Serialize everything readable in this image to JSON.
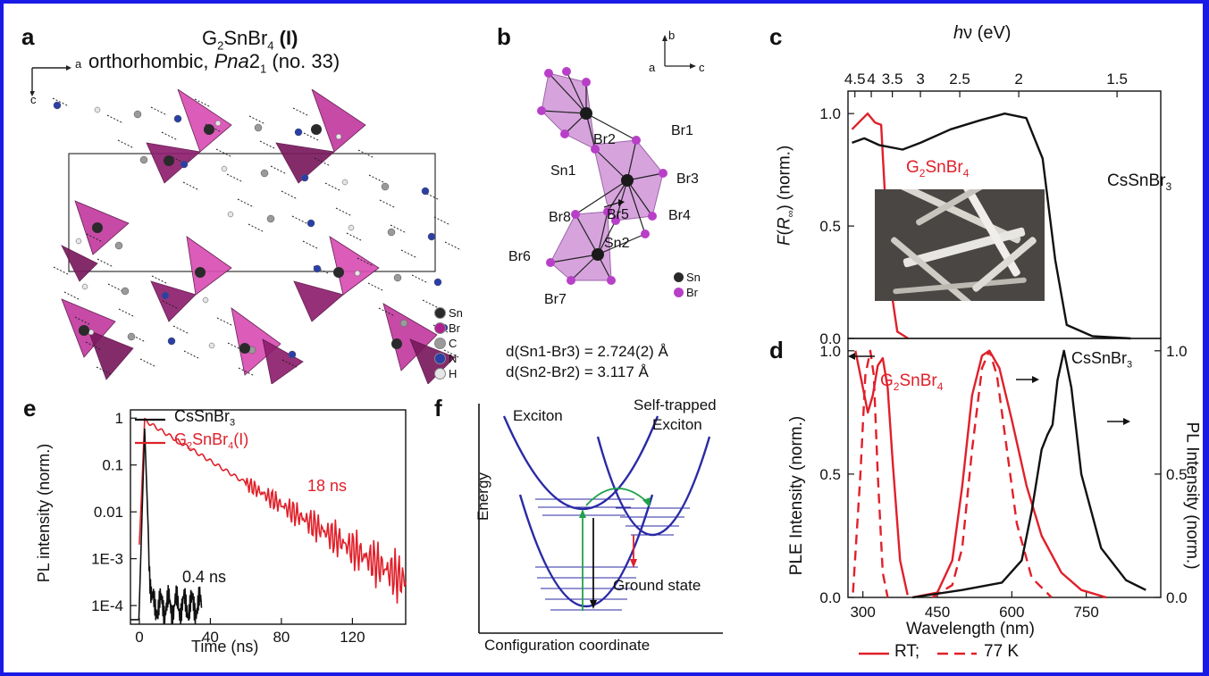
{
  "panels": {
    "a": {
      "label": "a",
      "title_compound": "G",
      "title_sub1": "2",
      "title_mid": "SnBr",
      "title_sub2": "4",
      "title_suffix": " (I)",
      "subtitle_pre": "orthorhombic, ",
      "subtitle_group": "Pna",
      "subtitle_sub": "2",
      "subtitle_sub2": "1",
      "subtitle_post": " (no. 33)",
      "axis_a": "a",
      "axis_c": "c",
      "legend": [
        {
          "label": "Sn",
          "color": "#2a2a2a"
        },
        {
          "label": "Br",
          "color": "#b0208f"
        },
        {
          "label": "C",
          "color": "#9a9a9a"
        },
        {
          "label": "N",
          "color": "#2b3fa8"
        },
        {
          "label": "H",
          "color": "#e6e6e6"
        }
      ]
    },
    "b": {
      "label": "b",
      "axis_b": "b",
      "axis_a": "a",
      "axis_c": "c",
      "atoms": [
        "Br2",
        "Br1",
        "Sn1",
        "Br3",
        "Br8",
        "Br5",
        "Br4",
        "Br6",
        "Sn2",
        "Br7"
      ],
      "legend": [
        {
          "label": "Sn",
          "color": "#2a2a2a"
        },
        {
          "label": "Br",
          "color": "#b83fc8"
        }
      ],
      "distance1": "d(Sn1-Br3) = 2.724(2) Å",
      "distance2": "d(Sn2-Br2) = 3.117 Å"
    },
    "c": {
      "label": "c",
      "top_axis_label_italic": "h",
      "top_axis_label_rest": "ν (eV)",
      "top_ticks": [
        "4.5",
        "4",
        "3.5",
        "3",
        "2.5",
        "2",
        "1.5"
      ],
      "y_ticks": [
        "0.0",
        "0.5",
        "1.0"
      ],
      "ylabel_italic_F": "F",
      "ylabel_R": "(R",
      "ylabel_sub": "∞",
      "ylabel_rest": ") (norm.)",
      "label_g_pre": "G",
      "label_g_sub": "2",
      "label_g_mid": "SnBr",
      "label_g_sub2": "4",
      "label_cs_pre": "CsSnBr",
      "label_cs_sub": "3"
    },
    "d": {
      "label": "d",
      "x_ticks": [
        "300",
        "450",
        "600",
        "750"
      ],
      "y_ticks_left": [
        "0.0",
        "0.5",
        "1.0"
      ],
      "y_ticks_right": [
        "0.0",
        "0.5",
        "1.0"
      ],
      "xlabel": "Wavelength (nm)",
      "ylabel_left": "PLE Intensity (norm.)",
      "ylabel_right": "PL Intensity (norm.)",
      "label_g_pre": "G",
      "label_g_sub": "2",
      "label_g_mid": "SnBr",
      "label_g_sub2": "4",
      "label_cs_pre": "CsSnBr",
      "label_cs_sub": "3",
      "legend_rt": "RT;",
      "legend_77k": "77 K"
    },
    "e": {
      "label": "e",
      "y_ticks": [
        "1",
        "0.1",
        "0.01",
        "1E-3",
        "1E-4"
      ],
      "x_ticks": [
        "0",
        "40",
        "80",
        "120"
      ],
      "xlabel": "Time (ns)",
      "ylabel": "PL intensity (norm.)",
      "legend_cs_pre": "CsSnBr",
      "legend_cs_sub": "3",
      "legend_g_pre": "G",
      "legend_g_sub": "2",
      "legend_g_mid": "SnBr",
      "legend_g_sub2": "4",
      "legend_g_suffix": "(I)",
      "ann_18": "18 ns",
      "ann_04": "0.4 ns"
    },
    "f": {
      "label": "f",
      "exciton": "Exciton",
      "ste1": "Self-trapped",
      "ste2": "Exciton",
      "ground": "Ground state",
      "ylabel": "Energy",
      "xlabel": "Configuration coordinate"
    }
  },
  "colors": {
    "red": "#e0202a",
    "black": "#111111",
    "blue": "#2a2aa6",
    "green": "#1fa24a",
    "frame": "#1a1ae6"
  },
  "chart_data": [
    {
      "type": "line",
      "panel": "c",
      "xlabel": "",
      "x2label": "hν (eV)",
      "ylabel": "F(R∞) (norm.)",
      "x2_ticks": [
        4.5,
        4,
        3.5,
        3,
        2.5,
        2,
        1.5
      ],
      "ylim": [
        0,
        1.1
      ],
      "series": [
        {
          "name": "G2SnBr4",
          "x_eV": [
            4.6,
            4.3,
            4.1,
            3.9,
            3.75,
            3.65,
            3.55,
            3.4,
            3.2
          ],
          "y": [
            0.93,
            0.97,
            1.0,
            0.96,
            0.95,
            0.6,
            0.25,
            0.03,
            0.0
          ]
        },
        {
          "name": "CsSnBr3",
          "x_eV": [
            4.6,
            4.2,
            3.8,
            3.3,
            3.0,
            2.6,
            2.3,
            2.1,
            1.95,
            1.85,
            1.78,
            1.72,
            1.6,
            1.45
          ],
          "y": [
            0.87,
            0.89,
            0.86,
            0.84,
            0.87,
            0.93,
            0.97,
            1.0,
            0.98,
            0.8,
            0.35,
            0.06,
            0.01,
            0.0
          ]
        }
      ]
    },
    {
      "type": "line",
      "panel": "d",
      "xlabel": "Wavelength (nm)",
      "ylabel": "PLE Intensity (norm.)",
      "y2label": "PL Intensity (norm.)",
      "xlim": [
        270,
        900
      ],
      "ylim": [
        0,
        1.05
      ],
      "series": [
        {
          "name": "G2SnBr4 PLE RT",
          "x": [
            285,
            300,
            310,
            320,
            330,
            340,
            350,
            360,
            375,
            390
          ],
          "y": [
            1.0,
            0.85,
            0.75,
            0.82,
            0.94,
            0.97,
            0.85,
            0.55,
            0.15,
            0.01
          ]
        },
        {
          "name": "G2SnBr4 PLE 77 K",
          "x": [
            280,
            295,
            305,
            315,
            322,
            330,
            340,
            350
          ],
          "y": [
            0.02,
            0.5,
            0.9,
            1.0,
            0.9,
            0.5,
            0.1,
            0.0
          ]
        },
        {
          "name": "G2SnBr4 PL RT",
          "x": [
            400,
            450,
            480,
            500,
            520,
            540,
            555,
            575,
            600,
            630,
            660,
            700,
            740,
            790
          ],
          "y": [
            0.0,
            0.02,
            0.15,
            0.45,
            0.82,
            0.98,
            1.0,
            0.93,
            0.72,
            0.45,
            0.25,
            0.1,
            0.03,
            0.0
          ]
        },
        {
          "name": "G2SnBr4 PL 77 K",
          "x": [
            440,
            480,
            500,
            520,
            540,
            555,
            570,
            590,
            610,
            640,
            680
          ],
          "y": [
            0.0,
            0.05,
            0.2,
            0.6,
            0.93,
            1.0,
            0.9,
            0.6,
            0.3,
            0.08,
            0.0
          ]
        },
        {
          "name": "CsSnBr3 PL RT",
          "x": [
            400,
            500,
            580,
            620,
            640,
            660,
            672,
            682,
            692,
            705,
            720,
            740,
            780,
            830,
            870
          ],
          "y": [
            0.0,
            0.03,
            0.06,
            0.15,
            0.35,
            0.6,
            0.66,
            0.7,
            0.88,
            1.0,
            0.85,
            0.5,
            0.2,
            0.07,
            0.03
          ]
        }
      ]
    },
    {
      "type": "line",
      "panel": "e",
      "xlabel": "Time (ns)",
      "ylabel": "PL intensity (norm.)",
      "yscale": "log",
      "xlim": [
        -5,
        150
      ],
      "ylim": [
        4e-05,
        1.5
      ],
      "series": [
        {
          "name": "CsSnBr3",
          "x": [
            -5,
            0,
            1.5,
            3,
            4,
            6,
            8,
            10,
            15,
            20,
            25,
            30,
            35
          ],
          "y": [
            5e-05,
            0.0001,
            0.2,
            0.6,
            0.1,
            0.003,
            0.0003,
            0.0001,
            0.00012,
            0.0001,
            0.00011,
            9e-05,
            0.0001
          ]
        },
        {
          "name": "G2SnBr4 (I)",
          "x": [
            0,
            1,
            2.5,
            3,
            10,
            20,
            40,
            60,
            80,
            100,
            120,
            140,
            150
          ],
          "y": [
            0.002,
            0.1,
            0.8,
            0.9,
            0.5,
            0.32,
            0.12,
            0.04,
            0.014,
            0.005,
            0.0015,
            0.0005,
            0.0003
          ]
        }
      ],
      "annotations": [
        "18 ns",
        "0.4 ns"
      ]
    }
  ]
}
